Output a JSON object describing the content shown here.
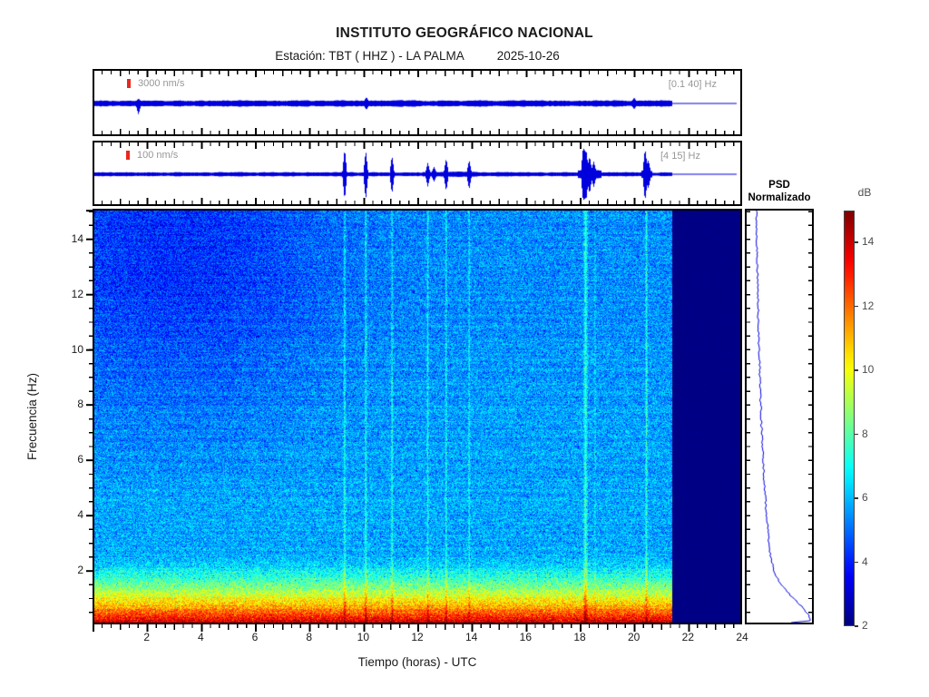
{
  "header": {
    "title": "INSTITUTO GEOGRÁFICO NACIONAL",
    "station_prefix": "Estación:  TBT ( HHZ ) - LA PALMA",
    "date": "2025-10-26"
  },
  "trace_panels": [
    {
      "id": "broadband",
      "scale_label": "3000 nm/s",
      "band_label": "[0.1 40] Hz"
    },
    {
      "id": "filtered",
      "scale_label": "100 nm/s",
      "band_label": "[4 15] Hz"
    }
  ],
  "psd_panel": {
    "title_line1": "PSD",
    "title_line2": "Normalizado"
  },
  "colorbar": {
    "label": "dB",
    "ticks": [
      14,
      12,
      10,
      8,
      6,
      4,
      2
    ],
    "min": 2,
    "max": 15
  },
  "axes": {
    "xlabel": "Tiempo (horas) - UTC",
    "ylabel": "Frecuencia  (Hz)",
    "x_ticks": [
      2,
      4,
      6,
      8,
      10,
      12,
      14,
      16,
      18,
      20,
      22,
      24
    ],
    "y_ticks": [
      2,
      4,
      6,
      8,
      10,
      12,
      14
    ],
    "x_range": [
      0,
      24
    ],
    "y_range": [
      0,
      15.1
    ]
  },
  "colors": {
    "waveform": "#0000dd",
    "scale_marker": "#e8281e",
    "label_gray": "#979797",
    "no_data": "#0a0080",
    "tick": "#000000"
  },
  "chart_data": {
    "type": "heatmap",
    "title": "INSTITUTO GEOGRÁFICO NACIONAL",
    "subtitle": "Estación: TBT ( HHZ ) - LA PALMA  2025-10-26",
    "xlabel": "Tiempo (horas) - UTC",
    "ylabel": "Frecuencia (Hz)",
    "x_range_hours": [
      0,
      24
    ],
    "y_range_hz": [
      0,
      15.1
    ],
    "colormap": "jet",
    "color_range_db": [
      2,
      15
    ],
    "data_end_hour": 21.4,
    "background_level_db": 5.85,
    "low_freq_boost": {
      "cutoff_hz": 2.7,
      "max_extra_db": 8.9,
      "exponent": 1.55
    },
    "quiet_patch": {
      "center_hour": 3,
      "hour_sigma": 4.2,
      "freq_start_hz": 4.5,
      "max_drop_db": 1.25,
      "base_drop_db": 0.35
    },
    "noise_db": 2.3,
    "events": [
      {
        "hour": 9.3,
        "width_h": 0.06,
        "extra_db": 1.7
      },
      {
        "hour": 10.08,
        "width_h": 0.06,
        "extra_db": 1.7
      },
      {
        "hour": 11.05,
        "width_h": 0.06,
        "extra_db": 1.5
      },
      {
        "hour": 12.37,
        "width_h": 0.05,
        "extra_db": 1.4
      },
      {
        "hour": 13.05,
        "width_h": 0.05,
        "extra_db": 1.5
      },
      {
        "hour": 13.9,
        "width_h": 0.05,
        "extra_db": 1.4
      },
      {
        "hour": 18.2,
        "width_h": 0.1,
        "extra_db": 2.0
      },
      {
        "hour": 18.55,
        "width_h": 0.04,
        "extra_db": 0.9
      },
      {
        "hour": 20.45,
        "width_h": 0.06,
        "extra_db": 1.7
      }
    ],
    "psd_curve": [
      [
        15,
        0.13
      ],
      [
        14,
        0.135
      ],
      [
        13,
        0.145
      ],
      [
        12,
        0.15
      ],
      [
        11,
        0.16
      ],
      [
        10,
        0.17
      ],
      [
        9,
        0.185
      ],
      [
        8,
        0.2
      ],
      [
        7,
        0.215
      ],
      [
        6,
        0.235
      ],
      [
        5,
        0.26
      ],
      [
        4.5,
        0.275
      ],
      [
        4,
        0.29
      ],
      [
        3.5,
        0.31
      ],
      [
        3,
        0.33
      ],
      [
        2.6,
        0.35
      ],
      [
        2.3,
        0.38
      ],
      [
        2,
        0.41
      ],
      [
        1.8,
        0.44
      ],
      [
        1.6,
        0.49
      ],
      [
        1.4,
        0.55
      ],
      [
        1.2,
        0.62
      ],
      [
        1.0,
        0.7
      ],
      [
        0.85,
        0.77
      ],
      [
        0.7,
        0.84
      ],
      [
        0.55,
        0.9
      ],
      [
        0.4,
        0.95
      ],
      [
        0.3,
        0.98
      ],
      [
        0.2,
        1.0
      ],
      [
        0.12,
        1.0
      ],
      [
        0.05,
        0.6
      ]
    ],
    "trace1": {
      "base": 1.9,
      "variation": 2.2,
      "features": [
        {
          "hour": 1.68,
          "up": 2,
          "down": 9
        },
        {
          "hour": 10.1,
          "up": 4,
          "down": 4
        },
        {
          "hour": 20.0,
          "up": 3,
          "down": 3
        }
      ],
      "bursts": []
    },
    "trace2": {
      "base": 1.2,
      "variation": 1.6,
      "features": [
        {
          "hour": 9.3,
          "up": 26,
          "down": 26
        },
        {
          "hour": 10.08,
          "up": 24,
          "down": 26
        },
        {
          "hour": 11.05,
          "up": 19,
          "down": 20
        },
        {
          "hour": 12.37,
          "up": 10,
          "down": 11
        },
        {
          "hour": 12.6,
          "up": 6,
          "down": 6
        },
        {
          "hour": 13.05,
          "up": 15,
          "down": 16
        },
        {
          "hour": 13.9,
          "up": 13,
          "down": 14
        },
        {
          "hour": 18.12,
          "up": 28,
          "down": 28
        },
        {
          "hour": 18.22,
          "up": 24,
          "down": 26
        },
        {
          "hour": 18.35,
          "up": 16,
          "down": 18
        },
        {
          "hour": 18.5,
          "up": 10,
          "down": 10
        },
        {
          "hour": 20.4,
          "up": 25,
          "down": 26
        },
        {
          "hour": 20.52,
          "up": 12,
          "down": 12
        }
      ],
      "bursts": [
        {
          "h0": 17.9,
          "h1": 18.8,
          "extra": 2.2
        },
        {
          "h0": 20.25,
          "h1": 20.65,
          "extra": 1.8
        },
        {
          "h0": 12.2,
          "h1": 14.2,
          "extra": 0.5
        }
      ]
    }
  }
}
